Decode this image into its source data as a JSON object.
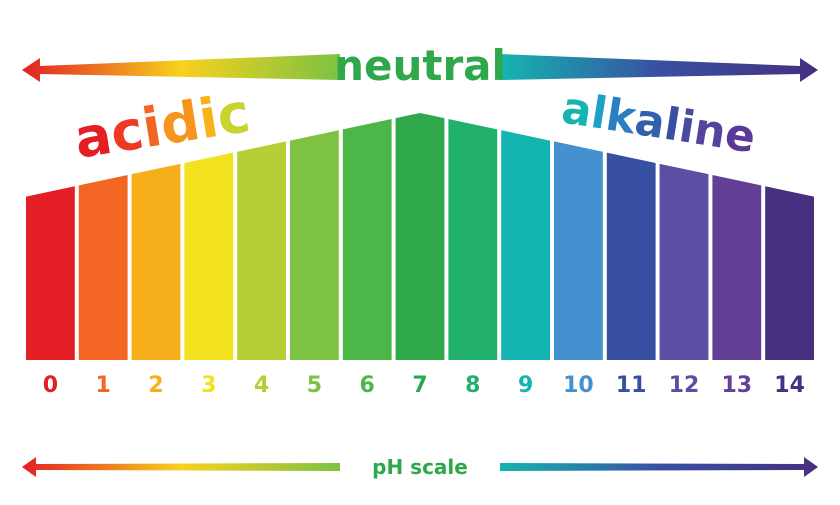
{
  "header": {
    "neutral": "neutral",
    "acidic": "acidic",
    "alkaline": "alkaline",
    "acidic_letter_colors": [
      "#e31e24",
      "#ee3a23",
      "#f26522",
      "#f7941d",
      "#f9b21b",
      "#c9d22f"
    ],
    "alkaline_letter_colors": [
      "#14b5b0",
      "#1ea0c8",
      "#2b7fc1",
      "#3060ae",
      "#3850a2",
      "#4a4a9f",
      "#55439c",
      "#5a3a96"
    ]
  },
  "scale": {
    "levels": [
      0,
      1,
      2,
      3,
      4,
      5,
      6,
      7,
      8,
      9,
      10,
      11,
      12,
      13,
      14
    ],
    "colors": [
      "#e31e24",
      "#f26522",
      "#f7ae1b",
      "#f2e21e",
      "#b5cf36",
      "#7dc242",
      "#4cb748",
      "#2ea84a",
      "#22b16b",
      "#14b5b0",
      "#4590cf",
      "#3850a2",
      "#5a4fa2",
      "#643f98",
      "#46307f"
    ]
  },
  "footer": {
    "label": "pH scale"
  }
}
